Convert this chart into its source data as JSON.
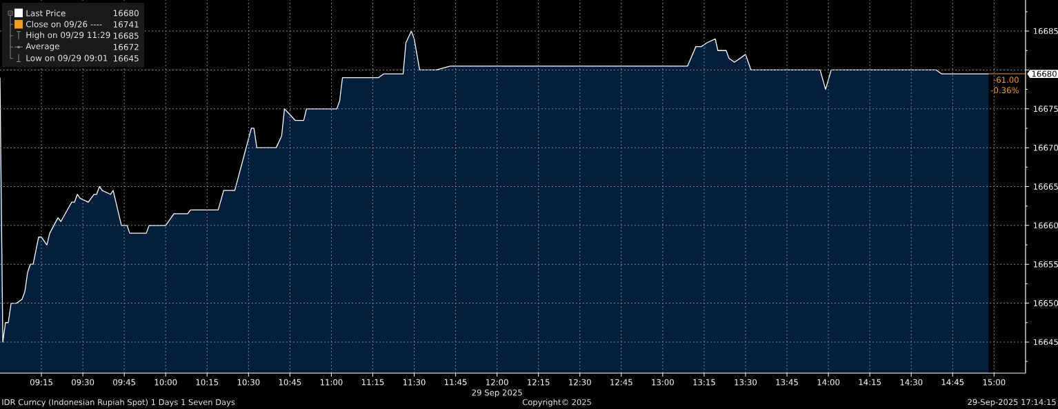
{
  "chart_data": {
    "type": "area",
    "xlabel": "29 Sep 2025",
    "xlim": [
      9,
      15.19
    ],
    "ylim": [
      16641,
      16689
    ],
    "xticks": [
      {
        "value": 9.25,
        "label": "09:15"
      },
      {
        "value": 9.5,
        "label": "09:30"
      },
      {
        "value": 9.75,
        "label": "09:45"
      },
      {
        "value": 10,
        "label": "10:00"
      },
      {
        "value": 10.25,
        "label": "10:15"
      },
      {
        "value": 10.5,
        "label": "10:30"
      },
      {
        "value": 10.75,
        "label": "10:45"
      },
      {
        "value": 11,
        "label": "11:00"
      },
      {
        "value": 11.25,
        "label": "11:15"
      },
      {
        "value": 11.5,
        "label": "11:30"
      },
      {
        "value": 11.75,
        "label": "11:45"
      },
      {
        "value": 12,
        "label": "12:00"
      },
      {
        "value": 12.25,
        "label": "12:15"
      },
      {
        "value": 12.5,
        "label": "12:30"
      },
      {
        "value": 12.75,
        "label": "12:45"
      },
      {
        "value": 13,
        "label": "13:00"
      },
      {
        "value": 13.25,
        "label": "13:15"
      },
      {
        "value": 13.5,
        "label": "13:30"
      },
      {
        "value": 13.75,
        "label": "13:45"
      },
      {
        "value": 14,
        "label": "14:00"
      },
      {
        "value": 14.25,
        "label": "14:15"
      },
      {
        "value": 14.5,
        "label": "14:30"
      },
      {
        "value": 14.75,
        "label": "14:45"
      },
      {
        "value": 15,
        "label": "15:00"
      }
    ],
    "yticks": [
      {
        "value": 16642.5,
        "label": null
      },
      16645,
      {
        "value": 16647.5,
        "label": null
      },
      16650,
      {
        "value": 16652.5,
        "label": null
      },
      16655,
      {
        "value": 16657.5,
        "label": null
      },
      16660,
      {
        "value": 16662.5,
        "label": null
      },
      16665,
      {
        "value": 16667.5,
        "label": null
      },
      16670,
      {
        "value": 16672.5,
        "label": null
      },
      16675,
      {
        "value": 16677.5,
        "label": null
      },
      {
        "value": 16680,
        "label": null
      },
      {
        "value": 16682.5,
        "label": null
      },
      16685,
      {
        "value": 16687.5,
        "label": null
      }
    ],
    "grid": true,
    "legend": "top left",
    "series": [
      {
        "name": "Last Price",
        "color": "#ffffff",
        "x": [
          9.0,
          9.017,
          9.033,
          9.05,
          9.067,
          9.1,
          9.133,
          9.15,
          9.167,
          9.183,
          9.2,
          9.233,
          9.25,
          9.283,
          9.3,
          9.35,
          9.367,
          9.433,
          9.45,
          9.467,
          9.483,
          9.533,
          9.567,
          9.583,
          9.6,
          9.617,
          9.667,
          9.683,
          9.733,
          9.767,
          9.783,
          9.883,
          9.9,
          10.0,
          10.05,
          10.133,
          10.15,
          10.317,
          10.35,
          10.417,
          10.517,
          10.533,
          10.55,
          10.667,
          10.7,
          10.717,
          10.783,
          10.833,
          10.85,
          11.033,
          11.05,
          11.067,
          11.083,
          11.283,
          11.317,
          11.433,
          11.45,
          11.483,
          11.5,
          11.533,
          11.633,
          11.717,
          13.15,
          13.2,
          13.233,
          13.267,
          13.317,
          13.333,
          13.383,
          13.4,
          13.433,
          13.5,
          13.533,
          13.95,
          13.983,
          14.017,
          14.65,
          14.683,
          14.967
        ],
        "values": [
          16679,
          16645,
          16647.5,
          16647.5,
          16650,
          16650,
          16650.5,
          16651.5,
          16654,
          16655,
          16655,
          16658.5,
          16658.5,
          16657.5,
          16659,
          16661,
          16660.5,
          16663,
          16663,
          16664,
          16663.5,
          16663,
          16664,
          16664,
          16665,
          16664.5,
          16664,
          16664.5,
          16660,
          16660,
          16659,
          16659,
          16660,
          16660,
          16661.5,
          16661.5,
          16662,
          16662,
          16664.5,
          16664.5,
          16672.5,
          16672.5,
          16670,
          16670,
          16671.5,
          16675,
          16673.5,
          16673.5,
          16675,
          16675,
          16676,
          16679,
          16679,
          16679,
          16679.5,
          16679.5,
          16683.5,
          16685,
          16684,
          16680,
          16680,
          16680.5,
          16680.5,
          16683,
          16683,
          16683.5,
          16684,
          16682.5,
          16682.5,
          16681.5,
          16681,
          16682,
          16680,
          16680,
          16677.5,
          16680,
          16680,
          16679.5,
          16679.5
        ]
      }
    ],
    "annotations": [
      "16680",
      "Close on 09/26 ----",
      "16741",
      "High on 09/29 11:29",
      "16685",
      "Average",
      "16672",
      "Low on 09/29 09:01",
      "16645",
      {
        "text": "16680",
        "x": 14.967,
        "y": 16679.5
      },
      "-61.00",
      "-0.36%",
      "IDR Curncy (Indonesian Rupiah Spot) 1 Days 1 Seven Days",
      "Copyright© 2025",
      "29-Sep-2025 17:14:15"
    ]
  }
}
